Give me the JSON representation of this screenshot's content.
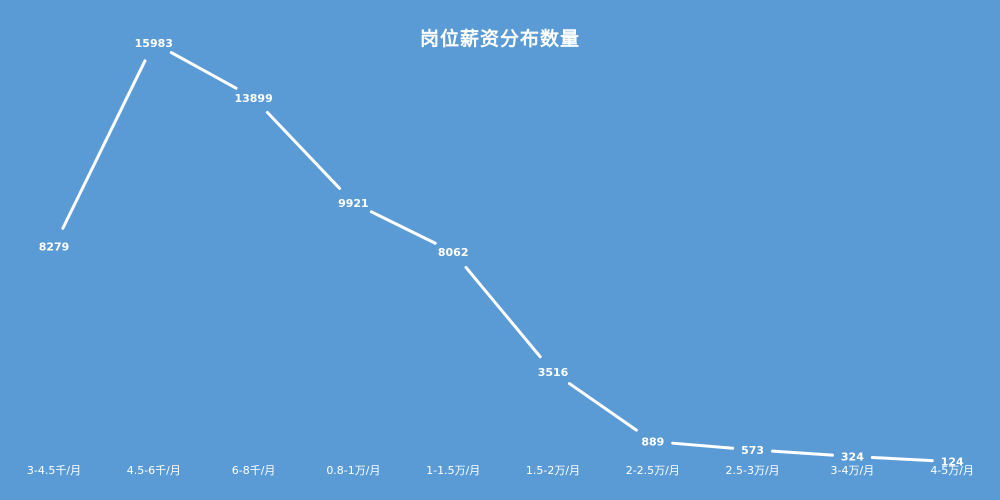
{
  "chart_data": {
    "type": "line",
    "title": "岗位薪资分布数量",
    "categories": [
      "3-4.5千/月",
      "4.5-6千/月",
      "6-8千/月",
      "0.8-1万/月",
      "1-1.5万/月",
      "1.5-2万/月",
      "2-2.5万/月",
      "2.5-3万/月",
      "3-4万/月",
      "4-5万/月"
    ],
    "series": [
      {
        "values": [
          8279,
          15983,
          13899,
          9921,
          8062,
          3516,
          889,
          573,
          324,
          124
        ]
      }
    ],
    "xlabel": "",
    "ylabel": "",
    "ylim": [
      0,
      17000
    ],
    "grid": false,
    "drop_lines": true,
    "colors": {
      "background": "#5b9bd5",
      "line": "#ffffff",
      "text": "#ffffff"
    }
  }
}
